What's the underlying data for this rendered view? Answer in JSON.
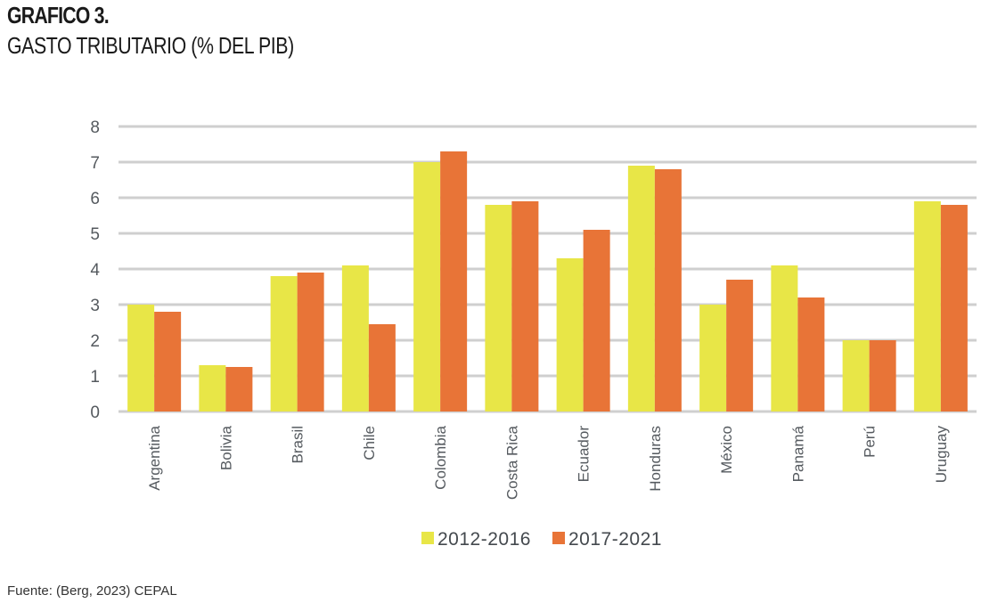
{
  "header": {
    "title": "GRAFICO 3.",
    "subtitle": "GASTO TRIBUTARIO (% DEL PIB)"
  },
  "footer": {
    "source": "Fuente: (Berg, 2023) CEPAL"
  },
  "chart_data": {
    "type": "bar",
    "title": "GASTO TRIBUTARIO (% DEL PIB)",
    "xlabel": "",
    "ylabel": "",
    "ylim": [
      0,
      8
    ],
    "yticks": [
      "0",
      "1",
      "2",
      "3",
      "4",
      "5",
      "6",
      "7",
      "8"
    ],
    "grid": true,
    "legend_position": "bottom",
    "categories": [
      "Argentina",
      "Bolivia",
      "Brasil",
      "Chile",
      "Colombia",
      "Costa Rica",
      "Ecuador",
      "Honduras",
      "México",
      "Panamá",
      "Perú",
      "Uruguay"
    ],
    "series": [
      {
        "name": "2012-2016",
        "color": "#e8e647",
        "values": [
          3.0,
          1.3,
          3.8,
          4.1,
          7.0,
          5.8,
          4.3,
          6.9,
          3.0,
          4.1,
          2.0,
          5.9
        ]
      },
      {
        "name": "2017-2021",
        "color": "#e87437",
        "values": [
          2.8,
          1.25,
          3.9,
          2.45,
          7.3,
          5.9,
          5.1,
          6.8,
          3.7,
          3.2,
          2.0,
          5.8
        ]
      }
    ],
    "gridline_color": "#cfcfcf"
  }
}
